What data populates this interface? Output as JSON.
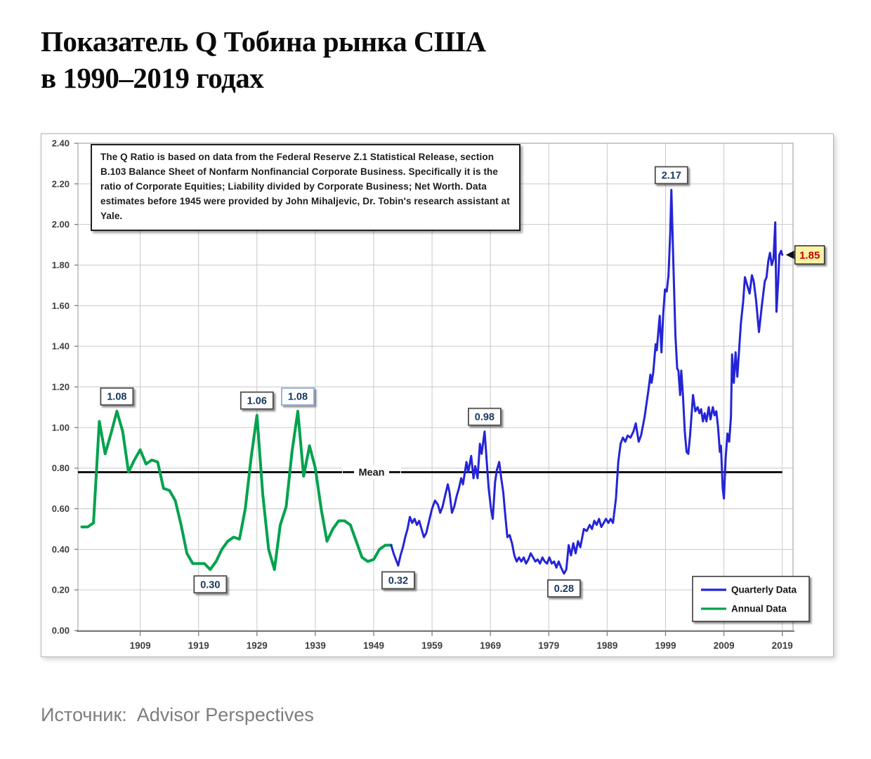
{
  "title": {
    "line1": "Показатель Q Тобина рынка США",
    "line2": "в 1990–2019 годах"
  },
  "source": {
    "label": "Источник:",
    "value": "Advisor Perspectives"
  },
  "info_box": {
    "text": "The Q Ratio is based on data from the Federal Reserve Z.1 Statistical Release, section B.103 Balance Sheet of Nonfarm Nonfinancial Corporate Business. Specifically it is the ratio  of Corporate Equities; Liability divided by Corporate Business; Net Worth.  Data estimates before 1945 were provided by John Mihaljevic, Dr. Tobin's research assistant at Yale."
  },
  "chart_data": {
    "type": "line",
    "xlabel": "",
    "ylabel": "",
    "xlim": [
      1898.3,
      2020.8
    ],
    "ylim": [
      0.0,
      2.4
    ],
    "grid": true,
    "x_ticks": [
      1909,
      1919,
      1929,
      1939,
      1949,
      1959,
      1969,
      1979,
      1989,
      1999,
      2009,
      2019
    ],
    "y_ticks": [
      0.0,
      0.2,
      0.4,
      0.6,
      0.8,
      1.0,
      1.2,
      1.4,
      1.6,
      1.8,
      2.0,
      2.2,
      2.4
    ],
    "y_tick_format": "0.00",
    "mean_line": {
      "label": "Mean",
      "value": 0.78,
      "color": "#141414"
    },
    "colors": {
      "quarterly": "#2424d6",
      "annual": "#00a24d",
      "grid": "#c9c9c9",
      "axis_text": "#3f3f3f",
      "callout_text": "#17375d",
      "final_box_fill": "#faf3a3",
      "final_text": "#c00000"
    },
    "legend": {
      "position": "bottom-right",
      "items": [
        {
          "label": "Quarterly Data",
          "color": "#2424d6"
        },
        {
          "label": "Annual Data",
          "color": "#00a24d"
        }
      ]
    },
    "series": [
      {
        "name": "Annual Data",
        "color": "#00a24d",
        "points": [
          [
            1899,
            0.51
          ],
          [
            1900,
            0.51
          ],
          [
            1901,
            0.53
          ],
          [
            1902,
            1.03
          ],
          [
            1903,
            0.87
          ],
          [
            1904,
            0.97
          ],
          [
            1905,
            1.08
          ],
          [
            1906,
            0.98
          ],
          [
            1907,
            0.78
          ],
          [
            1908,
            0.84
          ],
          [
            1909,
            0.89
          ],
          [
            1910,
            0.82
          ],
          [
            1911,
            0.84
          ],
          [
            1912,
            0.83
          ],
          [
            1913,
            0.7
          ],
          [
            1914,
            0.69
          ],
          [
            1915,
            0.64
          ],
          [
            1916,
            0.52
          ],
          [
            1917,
            0.38
          ],
          [
            1918,
            0.33
          ],
          [
            1919,
            0.33
          ],
          [
            1920,
            0.33
          ],
          [
            1921,
            0.3
          ],
          [
            1922,
            0.34
          ],
          [
            1923,
            0.4
          ],
          [
            1924,
            0.44
          ],
          [
            1925,
            0.46
          ],
          [
            1926,
            0.45
          ],
          [
            1927,
            0.6
          ],
          [
            1928,
            0.85
          ],
          [
            1929,
            1.06
          ],
          [
            1930,
            0.67
          ],
          [
            1931,
            0.4
          ],
          [
            1932,
            0.3
          ],
          [
            1933,
            0.52
          ],
          [
            1934,
            0.61
          ],
          [
            1935,
            0.88
          ],
          [
            1936,
            1.08
          ],
          [
            1937,
            0.76
          ],
          [
            1938,
            0.91
          ],
          [
            1939,
            0.8
          ],
          [
            1940,
            0.6
          ],
          [
            1941,
            0.44
          ],
          [
            1942,
            0.5
          ],
          [
            1943,
            0.54
          ],
          [
            1944,
            0.54
          ],
          [
            1945,
            0.52
          ],
          [
            1946,
            0.44
          ],
          [
            1947,
            0.36
          ],
          [
            1948,
            0.34
          ],
          [
            1949,
            0.35
          ],
          [
            1950,
            0.4
          ],
          [
            1951,
            0.42
          ],
          [
            1952,
            0.42
          ]
        ]
      },
      {
        "name": "Quarterly Data",
        "color": "#2424d6",
        "points": [
          [
            1952.0,
            0.42
          ],
          [
            1952.4,
            0.38
          ],
          [
            1952.8,
            0.35
          ],
          [
            1953.2,
            0.32
          ],
          [
            1953.6,
            0.37
          ],
          [
            1954.0,
            0.41
          ],
          [
            1954.4,
            0.46
          ],
          [
            1954.8,
            0.5
          ],
          [
            1955.2,
            0.56
          ],
          [
            1955.6,
            0.53
          ],
          [
            1956.0,
            0.55
          ],
          [
            1956.4,
            0.52
          ],
          [
            1956.8,
            0.54
          ],
          [
            1957.2,
            0.5
          ],
          [
            1957.6,
            0.46
          ],
          [
            1958.0,
            0.48
          ],
          [
            1958.5,
            0.54
          ],
          [
            1959.0,
            0.6
          ],
          [
            1959.5,
            0.64
          ],
          [
            1960.0,
            0.62
          ],
          [
            1960.4,
            0.58
          ],
          [
            1960.8,
            0.61
          ],
          [
            1961.2,
            0.66
          ],
          [
            1961.7,
            0.72
          ],
          [
            1962.0,
            0.68
          ],
          [
            1962.4,
            0.58
          ],
          [
            1962.8,
            0.61
          ],
          [
            1963.2,
            0.66
          ],
          [
            1963.6,
            0.7
          ],
          [
            1964.0,
            0.75
          ],
          [
            1964.3,
            0.72
          ],
          [
            1964.9,
            0.83
          ],
          [
            1965.2,
            0.78
          ],
          [
            1965.7,
            0.86
          ],
          [
            1966.1,
            0.75
          ],
          [
            1966.4,
            0.81
          ],
          [
            1966.8,
            0.75
          ],
          [
            1967.2,
            0.92
          ],
          [
            1967.5,
            0.87
          ],
          [
            1968.0,
            0.98
          ],
          [
            1968.4,
            0.82
          ],
          [
            1968.7,
            0.7
          ],
          [
            1969.1,
            0.6
          ],
          [
            1969.4,
            0.55
          ],
          [
            1969.8,
            0.73
          ],
          [
            1970.1,
            0.79
          ],
          [
            1970.5,
            0.83
          ],
          [
            1970.8,
            0.76
          ],
          [
            1971.2,
            0.68
          ],
          [
            1971.5,
            0.58
          ],
          [
            1971.9,
            0.46
          ],
          [
            1972.3,
            0.47
          ],
          [
            1972.7,
            0.43
          ],
          [
            1973.1,
            0.37
          ],
          [
            1973.5,
            0.34
          ],
          [
            1973.9,
            0.36
          ],
          [
            1974.3,
            0.34
          ],
          [
            1974.7,
            0.36
          ],
          [
            1975.1,
            0.33
          ],
          [
            1975.5,
            0.35
          ],
          [
            1975.9,
            0.38
          ],
          [
            1976.3,
            0.36
          ],
          [
            1976.7,
            0.34
          ],
          [
            1977.1,
            0.35
          ],
          [
            1977.5,
            0.33
          ],
          [
            1977.9,
            0.36
          ],
          [
            1978.3,
            0.34
          ],
          [
            1978.7,
            0.33
          ],
          [
            1979.1,
            0.36
          ],
          [
            1979.5,
            0.33
          ],
          [
            1979.9,
            0.34
          ],
          [
            1980.3,
            0.31
          ],
          [
            1980.7,
            0.34
          ],
          [
            1981.1,
            0.31
          ],
          [
            1981.6,
            0.28
          ],
          [
            1982.0,
            0.3
          ],
          [
            1982.4,
            0.42
          ],
          [
            1982.8,
            0.37
          ],
          [
            1983.2,
            0.43
          ],
          [
            1983.6,
            0.38
          ],
          [
            1984.0,
            0.44
          ],
          [
            1984.4,
            0.41
          ],
          [
            1985.0,
            0.5
          ],
          [
            1985.5,
            0.49
          ],
          [
            1986.0,
            0.52
          ],
          [
            1986.4,
            0.5
          ],
          [
            1986.8,
            0.54
          ],
          [
            1987.2,
            0.52
          ],
          [
            1987.6,
            0.55
          ],
          [
            1988.0,
            0.51
          ],
          [
            1988.4,
            0.53
          ],
          [
            1988.8,
            0.55
          ],
          [
            1989.2,
            0.53
          ],
          [
            1989.6,
            0.55
          ],
          [
            1990.0,
            0.53
          ],
          [
            1990.5,
            0.65
          ],
          [
            1990.9,
            0.83
          ],
          [
            1991.3,
            0.92
          ],
          [
            1991.7,
            0.95
          ],
          [
            1992.1,
            0.93
          ],
          [
            1992.5,
            0.96
          ],
          [
            1993.0,
            0.95
          ],
          [
            1993.5,
            0.98
          ],
          [
            1993.9,
            1.02
          ],
          [
            1994.4,
            0.93
          ],
          [
            1994.8,
            0.96
          ],
          [
            1995.4,
            1.05
          ],
          [
            1996.1,
            1.19
          ],
          [
            1996.4,
            1.26
          ],
          [
            1996.6,
            1.22
          ],
          [
            1996.9,
            1.27
          ],
          [
            1997.3,
            1.41
          ],
          [
            1997.5,
            1.38
          ],
          [
            1998.0,
            1.55
          ],
          [
            1998.3,
            1.37
          ],
          [
            1998.6,
            1.56
          ],
          [
            1998.9,
            1.68
          ],
          [
            1999.2,
            1.67
          ],
          [
            1999.5,
            1.75
          ],
          [
            1999.8,
            1.95
          ],
          [
            2000.0,
            2.17
          ],
          [
            2000.3,
            1.85
          ],
          [
            2000.5,
            1.64
          ],
          [
            2000.7,
            1.45
          ],
          [
            2001.0,
            1.29
          ],
          [
            2001.2,
            1.28
          ],
          [
            2001.5,
            1.16
          ],
          [
            2001.7,
            1.28
          ],
          [
            2002.0,
            1.15
          ],
          [
            2002.3,
            0.98
          ],
          [
            2002.6,
            0.88
          ],
          [
            2002.9,
            0.87
          ],
          [
            2003.2,
            0.96
          ],
          [
            2003.7,
            1.16
          ],
          [
            2004.1,
            1.08
          ],
          [
            2004.5,
            1.1
          ],
          [
            2004.8,
            1.07
          ],
          [
            2005.1,
            1.09
          ],
          [
            2005.4,
            1.03
          ],
          [
            2005.7,
            1.07
          ],
          [
            2006.0,
            1.03
          ],
          [
            2006.4,
            1.1
          ],
          [
            2006.7,
            1.04
          ],
          [
            2007.1,
            1.1
          ],
          [
            2007.4,
            1.06
          ],
          [
            2007.7,
            1.08
          ],
          [
            2008.0,
            1.0
          ],
          [
            2008.3,
            0.88
          ],
          [
            2008.5,
            0.91
          ],
          [
            2008.8,
            0.7
          ],
          [
            2009.0,
            0.65
          ],
          [
            2009.3,
            0.85
          ],
          [
            2009.6,
            0.97
          ],
          [
            2009.9,
            0.93
          ],
          [
            2010.2,
            1.05
          ],
          [
            2010.4,
            1.36
          ],
          [
            2010.7,
            1.22
          ],
          [
            2011.0,
            1.37
          ],
          [
            2011.3,
            1.25
          ],
          [
            2011.6,
            1.38
          ],
          [
            2011.9,
            1.51
          ],
          [
            2012.3,
            1.62
          ],
          [
            2012.6,
            1.74
          ],
          [
            2013.0,
            1.7
          ],
          [
            2013.4,
            1.66
          ],
          [
            2013.8,
            1.75
          ],
          [
            2014.1,
            1.72
          ],
          [
            2014.5,
            1.63
          ],
          [
            2015.0,
            1.47
          ],
          [
            2015.5,
            1.6
          ],
          [
            2016.0,
            1.72
          ],
          [
            2016.3,
            1.74
          ],
          [
            2016.6,
            1.82
          ],
          [
            2016.9,
            1.86
          ],
          [
            2017.2,
            1.8
          ],
          [
            2017.5,
            1.83
          ],
          [
            2017.8,
            2.01
          ],
          [
            2018.0,
            1.57
          ],
          [
            2018.3,
            1.72
          ],
          [
            2018.5,
            1.85
          ],
          [
            2018.8,
            1.87
          ],
          [
            2019.0,
            1.85
          ]
        ]
      }
    ],
    "annotations": [
      {
        "label": "1.08",
        "year": 1905,
        "value": 1.08,
        "placement": "above",
        "style": "dark"
      },
      {
        "label": "0.30",
        "year": 1921,
        "value": 0.3,
        "placement": "below",
        "style": "dark"
      },
      {
        "label": "1.06",
        "year": 1929,
        "value": 1.06,
        "placement": "above",
        "style": "dark"
      },
      {
        "label": "1.08",
        "year": 1936,
        "value": 1.08,
        "placement": "above",
        "style": "blue"
      },
      {
        "label": "0.32",
        "year": 1953.2,
        "value": 0.32,
        "placement": "below",
        "style": "dark"
      },
      {
        "label": "0.98",
        "year": 1968,
        "value": 0.98,
        "placement": "above",
        "style": "dark"
      },
      {
        "label": "0.28",
        "year": 1981.6,
        "value": 0.28,
        "placement": "below",
        "style": "dark"
      },
      {
        "label": "2.17",
        "year": 2000,
        "value": 2.17,
        "placement": "above",
        "style": "dark"
      },
      {
        "label": "1.85",
        "year": 2019,
        "value": 1.85,
        "placement": "right-arrow",
        "style": "final"
      }
    ]
  }
}
